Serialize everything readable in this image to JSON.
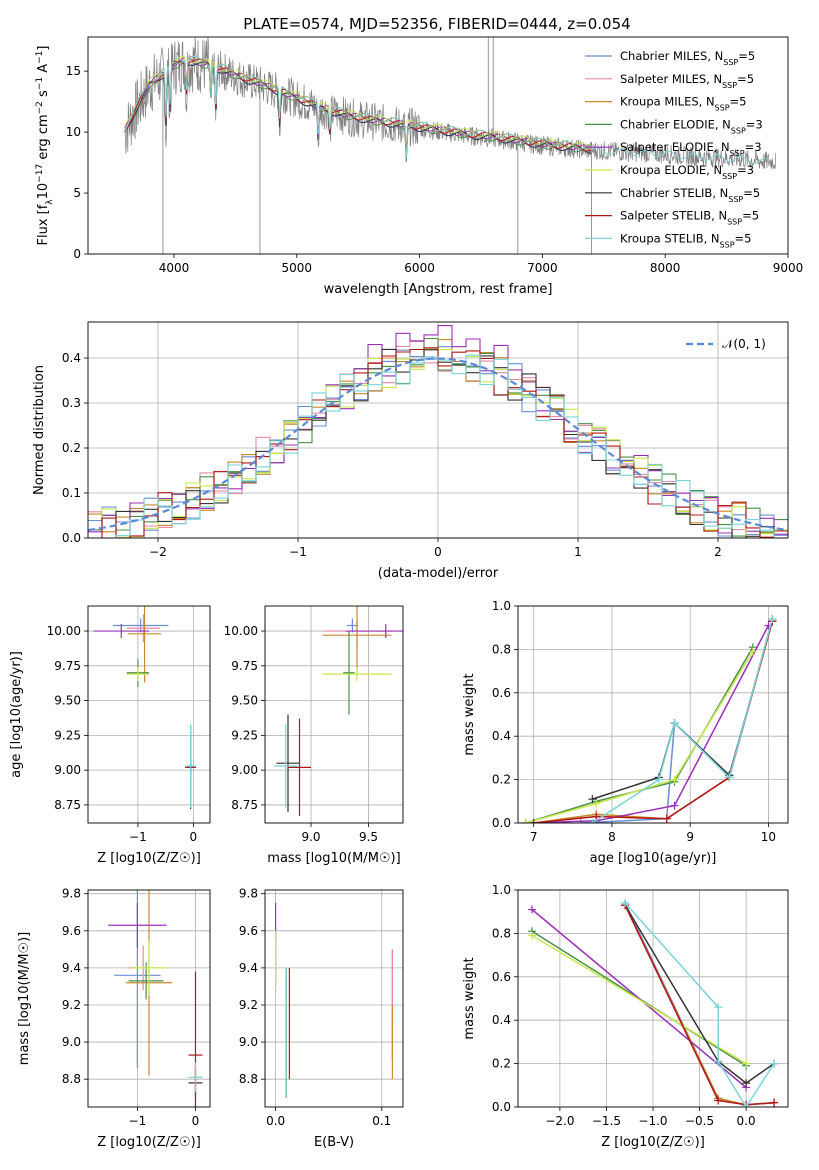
{
  "title": "PLATE=0574, MJD=52356, FIBERID=0444, z=0.054",
  "colors": {
    "Chabrier MILES": "#6a8fd4",
    "Salpeter MILES": "#e88aa8",
    "Kroupa MILES": "#c88a2a",
    "Chabrier ELODIE": "#4a8f4a",
    "Salpeter ELODIE": "#9b30b8",
    "Kroupa ELODIE": "#c8e84a",
    "Chabrier STELIB": "#333333",
    "Salpeter STELIB": "#b01818",
    "Kroupa STELIB": "#7ad4d8",
    "data": "#808080",
    "gauss": "#5b8bd8",
    "grid": "#b0b0b0"
  },
  "chart_data": [
    {
      "type": "line",
      "xlabel": "wavelength [Angstrom, rest frame]",
      "ylabel": "Flux [f_λ 10^-17 erg cm^-2 s^-1 A^-1]",
      "xlim": [
        3300,
        9000
      ],
      "ylim": [
        0,
        17.8
      ],
      "xticks": [
        "4000",
        "5000",
        "6000",
        "7000",
        "8000",
        "9000"
      ],
      "yticks": [
        "0",
        "5",
        "10",
        "15"
      ],
      "legend_position": "top-right",
      "legend": [
        "Chabrier MILES, N_SSP=5",
        "Salpeter MILES, N_SSP=5",
        "Kroupa MILES, N_SSP=5",
        "Chabrier ELODIE, N_SSP=3",
        "Salpeter ELODIE, N_SSP=3",
        "Kroupa ELODIE, N_SSP=3",
        "Chabrier STELIB, N_SSP=5",
        "Salpeter STELIB, N_SSP=5",
        "Kroupa STELIB, N_SSP=5"
      ],
      "continuum": {
        "x": [
          3600,
          3700,
          3800,
          3900,
          4000,
          4100,
          4200,
          4300,
          4400,
          4500,
          4600,
          4700,
          4800,
          5000,
          5200,
          5400,
          5600,
          5800,
          6000,
          6200,
          6400,
          6600,
          6800,
          7000,
          7200,
          7400,
          7600,
          7800,
          8000,
          8200,
          8400,
          8600,
          8800
        ],
        "y": [
          10.0,
          12.0,
          13.8,
          14.6,
          15.4,
          15.8,
          15.6,
          15.4,
          15.0,
          14.6,
          14.2,
          13.9,
          13.5,
          12.7,
          11.9,
          11.3,
          10.9,
          10.6,
          10.3,
          10.0,
          9.7,
          9.5,
          9.2,
          8.9,
          8.7,
          8.5,
          8.4,
          8.3,
          8.2,
          8.0,
          7.9,
          7.8,
          7.6
        ]
      },
      "absorption_lines": [
        {
          "x": 3934,
          "depth": 5
        },
        {
          "x": 3968,
          "depth": 4
        },
        {
          "x": 4102,
          "depth": 3
        },
        {
          "x": 4300,
          "depth": 3
        },
        {
          "x": 4341,
          "depth": 4
        },
        {
          "x": 4861,
          "depth": 3
        },
        {
          "x": 5175,
          "depth": 3
        },
        {
          "x": 5270,
          "depth": 2
        },
        {
          "x": 5892,
          "depth": 3
        }
      ],
      "spikes": [
        {
          "x": 3910,
          "y": 0
        },
        {
          "x": 4700,
          "y": 0
        },
        {
          "x": 6800,
          "y": 0
        },
        {
          "x": 6560,
          "y": 17.8
        },
        {
          "x": 6600,
          "y": 17.8
        },
        {
          "x": 7400,
          "y": 0
        }
      ]
    },
    {
      "type": "bar",
      "xlabel": "(data-model)/error",
      "ylabel": "Normed distribution",
      "xlim": [
        -2.5,
        2.5
      ],
      "ylim": [
        0,
        0.48
      ],
      "xticks": [
        "−2",
        "−1",
        "0",
        "1",
        "2"
      ],
      "yticks": [
        "0.0",
        "0.1",
        "0.2",
        "0.3",
        "0.4"
      ],
      "legend": [
        "𝒩(0, 1)"
      ],
      "gaussian": {
        "mean": 0,
        "sigma": 1
      },
      "bin_width": 0.1
    },
    {
      "type": "scatter",
      "xlabel": "Z [log10(Z/Z☉)]",
      "ylabel": "age [log10(age/yr)]",
      "xlim": [
        -1.9,
        0.3
      ],
      "ylim": [
        8.62,
        10.18
      ],
      "xticks": [
        "−1",
        "0"
      ],
      "yticks": [
        "8.75",
        "9.00",
        "9.25",
        "9.50",
        "9.75",
        "10.00"
      ],
      "points": [
        {
          "model": "Chabrier MILES",
          "x": -0.95,
          "y": 10.04,
          "xerr": 0.5,
          "yerr": 0.05
        },
        {
          "model": "Salpeter MILES",
          "x": -0.9,
          "y": 10.02,
          "xerr": 0.3,
          "yerr": 0.1
        },
        {
          "model": "Kroupa MILES",
          "x": -0.88,
          "y": 9.98,
          "xerr": 0.3,
          "yerr": 0.35
        },
        {
          "model": "Chabrier ELODIE",
          "x": -1.0,
          "y": 9.7,
          "xerr": 0.2,
          "yerr": 0.1
        },
        {
          "model": "Salpeter ELODIE",
          "x": -1.3,
          "y": 10.0,
          "xerr": 0.5,
          "yerr": 0.05
        },
        {
          "model": "Kroupa ELODIE",
          "x": -1.0,
          "y": 9.69,
          "xerr": 0.2,
          "yerr": 0.05
        },
        {
          "model": "Chabrier STELIB",
          "x": -0.05,
          "y": 9.02,
          "xerr": 0.05,
          "yerr": 0.3
        },
        {
          "model": "Salpeter STELIB",
          "x": -0.05,
          "y": 9.02,
          "xerr": 0.1,
          "yerr": 0.05
        },
        {
          "model": "Kroupa STELIB",
          "x": -0.05,
          "y": 9.03,
          "xerr": 0.1,
          "yerr": 0.3
        }
      ]
    },
    {
      "type": "scatter",
      "xlabel": "mass [log10(M/M☉)]",
      "ylabel": "",
      "xlim": [
        8.6,
        9.8
      ],
      "ylim": [
        8.62,
        10.18
      ],
      "xticks": [
        "9.0",
        "9.5"
      ],
      "yticks": [
        "8.75",
        "9.00",
        "9.25",
        "9.50",
        "9.75",
        "10.00"
      ],
      "points": [
        {
          "model": "Chabrier MILES",
          "x": 9.36,
          "y": 10.04,
          "xerr": 0.05,
          "yerr": 0.05
        },
        {
          "model": "Salpeter MILES",
          "x": 9.4,
          "y": 10.0,
          "xerr": 0.3,
          "yerr": 0.1
        },
        {
          "model": "Kroupa MILES",
          "x": 9.4,
          "y": 9.97,
          "xerr": 0.3,
          "yerr": 0.3
        },
        {
          "model": "Chabrier ELODIE",
          "x": 9.33,
          "y": 9.7,
          "xerr": 0.05,
          "yerr": 0.3
        },
        {
          "model": "Salpeter ELODIE",
          "x": 9.65,
          "y": 10.0,
          "xerr": 0.35,
          "yerr": 0.05
        },
        {
          "model": "Kroupa ELODIE",
          "x": 9.4,
          "y": 9.69,
          "xerr": 0.3,
          "yerr": 0.05
        },
        {
          "model": "Chabrier STELIB",
          "x": 8.8,
          "y": 9.05,
          "xerr": 0.1,
          "yerr": 0.35
        },
        {
          "model": "Salpeter STELIB",
          "x": 8.9,
          "y": 9.02,
          "xerr": 0.1,
          "yerr": 0.35
        },
        {
          "model": "Kroupa STELIB",
          "x": 8.78,
          "y": 9.03,
          "xerr": 0.1,
          "yerr": 0.3
        }
      ]
    },
    {
      "type": "line",
      "xlabel": "age [log10(age/yr)]",
      "ylabel": "mass weight",
      "xlim": [
        6.8,
        10.25
      ],
      "ylim": [
        0,
        1.0
      ],
      "xticks": [
        "7",
        "8",
        "9",
        "10"
      ],
      "yticks": [
        "0.0",
        "0.2",
        "0.4",
        "0.6",
        "0.8",
        "1.0"
      ],
      "series": [
        {
          "name": "Chabrier MILES",
          "x": [
            7.6,
            8.7,
            8.8,
            9.5,
            10.05
          ],
          "y": [
            0.0,
            0.02,
            0.46,
            0.22,
            0.93
          ]
        },
        {
          "name": "Salpeter MILES",
          "x": [
            7.0,
            7.8,
            8.7,
            9.5,
            10.05
          ],
          "y": [
            0.0,
            0.03,
            0.02,
            0.21,
            0.93
          ]
        },
        {
          "name": "Kroupa MILES",
          "x": [
            7.0,
            7.8,
            8.7,
            9.5,
            10.05
          ],
          "y": [
            0.0,
            0.04,
            0.02,
            0.21,
            0.94
          ]
        },
        {
          "name": "Chabrier ELODIE",
          "x": [
            6.9,
            7.8,
            8.8,
            9.8
          ],
          "y": [
            0.0,
            0.1,
            0.19,
            0.81
          ]
        },
        {
          "name": "Salpeter ELODIE",
          "x": [
            6.9,
            7.8,
            8.8,
            10.0
          ],
          "y": [
            0.0,
            0.01,
            0.08,
            0.91
          ]
        },
        {
          "name": "Kroupa ELODIE",
          "x": [
            6.9,
            7.8,
            8.8,
            9.8
          ],
          "y": [
            0.0,
            0.09,
            0.2,
            0.79
          ]
        },
        {
          "name": "Chabrier STELIB",
          "x": [
            7.75,
            8.6,
            8.8,
            9.5,
            10.05
          ],
          "y": [
            0.11,
            0.21,
            0.46,
            0.22,
            0.93
          ]
        },
        {
          "name": "Salpeter STELIB",
          "x": [
            7.0,
            7.8,
            8.7,
            9.5,
            10.05
          ],
          "y": [
            0.0,
            0.03,
            0.02,
            0.21,
            0.93
          ]
        },
        {
          "name": "Kroupa STELIB",
          "x": [
            7.75,
            8.6,
            8.8,
            9.5,
            10.05
          ],
          "y": [
            0.0,
            0.2,
            0.46,
            0.21,
            0.94
          ]
        }
      ]
    },
    {
      "type": "scatter",
      "xlabel": "Z [log10(Z/Z☉)]",
      "ylabel": "mass [log10(M/M☉)]",
      "xlim": [
        -1.85,
        0.25
      ],
      "ylim": [
        8.65,
        9.82
      ],
      "xticks": [
        "−1",
        "0"
      ],
      "yticks": [
        "8.8",
        "9.0",
        "9.2",
        "9.4",
        "9.6",
        "9.8"
      ],
      "points": [
        {
          "model": "Chabrier MILES",
          "x": -1.0,
          "y": 9.36,
          "xerr": 0.4,
          "yerr": 0.5
        },
        {
          "model": "Salpeter MILES",
          "x": -0.9,
          "y": 9.4,
          "xerr": 0.25,
          "yerr": 0.12
        },
        {
          "model": "Kroupa MILES",
          "x": -0.8,
          "y": 9.32,
          "xerr": 0.4,
          "yerr": 0.5
        },
        {
          "model": "Chabrier ELODIE",
          "x": -0.85,
          "y": 9.33,
          "xerr": 0.3,
          "yerr": 0.1
        },
        {
          "model": "Salpeter ELODIE",
          "x": -1.0,
          "y": 9.63,
          "xerr": 0.5,
          "yerr": 0.12
        },
        {
          "model": "Kroupa ELODIE",
          "x": -0.8,
          "y": 9.4,
          "xerr": 0.3,
          "yerr": 0.15
        },
        {
          "model": "Chabrier STELIB",
          "x": 0.0,
          "y": 8.78,
          "xerr": 0.12,
          "yerr": 0.08
        },
        {
          "model": "Salpeter STELIB",
          "x": 0.0,
          "y": 8.93,
          "xerr": 0.12,
          "yerr": 0.45
        },
        {
          "model": "Kroupa STELIB",
          "x": 0.0,
          "y": 8.81,
          "xerr": 0.12,
          "yerr": 0.08
        }
      ]
    },
    {
      "type": "scatter",
      "xlabel": "E(B-V)",
      "ylabel": "",
      "xlim": [
        -0.01,
        0.12
      ],
      "ylim": [
        8.65,
        9.82
      ],
      "xticks": [
        "0.0",
        "0.1"
      ],
      "yticks": [
        "8.8",
        "9.0",
        "9.2",
        "9.4",
        "9.6",
        "9.8"
      ],
      "points": [
        {
          "model": "Chabrier MILES",
          "x": 0.11,
          "y": 9.2,
          "xerr": 0,
          "yerr": 0.3
        },
        {
          "model": "Salpeter MILES",
          "x": 0.11,
          "y": 9.3,
          "xerr": 0,
          "yerr": 0.2
        },
        {
          "model": "Kroupa MILES",
          "x": 0.11,
          "y": 9.0,
          "xerr": 0,
          "yerr": 0.2
        },
        {
          "model": "Chabrier ELODIE",
          "x": 0.0,
          "y": 9.45,
          "xerr": 0,
          "yerr": 0.15
        },
        {
          "model": "Salpeter ELODIE",
          "x": 0.0,
          "y": 9.65,
          "xerr": 0,
          "yerr": 0.1
        },
        {
          "model": "Kroupa ELODIE",
          "x": 0.0,
          "y": 9.45,
          "xerr": 0,
          "yerr": 0.15
        },
        {
          "model": "Chabrier STELIB",
          "x": 0.01,
          "y": 9.05,
          "xerr": 0,
          "yerr": 0.35
        },
        {
          "model": "Salpeter STELIB",
          "x": 0.013,
          "y": 9.1,
          "xerr": 0,
          "yerr": 0.3
        },
        {
          "model": "Kroupa STELIB",
          "x": 0.01,
          "y": 9.05,
          "xerr": 0,
          "yerr": 0.35
        }
      ]
    },
    {
      "type": "line",
      "xlabel": "Z [log10(Z/Z☉)]",
      "ylabel": "mass weight",
      "xlim": [
        -2.45,
        0.45
      ],
      "ylim": [
        0,
        1.0
      ],
      "xticks": [
        "−2.0",
        "−1.5",
        "−1.0",
        "−0.5",
        "0.0"
      ],
      "yticks": [
        "0.0",
        "0.2",
        "0.4",
        "0.6",
        "0.8",
        "1.0"
      ],
      "series": [
        {
          "name": "Chabrier MILES",
          "x": [
            -1.3,
            -0.3,
            0.0,
            0.3
          ],
          "y": [
            0.94,
            0.04,
            0.01,
            0.02
          ]
        },
        {
          "name": "Salpeter MILES",
          "x": [
            -1.3,
            -0.3,
            0.0,
            0.3
          ],
          "y": [
            0.93,
            0.03,
            0.01,
            0.02
          ]
        },
        {
          "name": "Kroupa MILES",
          "x": [
            -1.3,
            -0.3,
            0.0,
            0.3
          ],
          "y": [
            0.93,
            0.04,
            0.01,
            0.02
          ]
        },
        {
          "name": "Chabrier ELODIE",
          "x": [
            -2.3,
            0.0
          ],
          "y": [
            0.81,
            0.19
          ]
        },
        {
          "name": "Salpeter ELODIE",
          "x": [
            -2.3,
            0.0
          ],
          "y": [
            0.91,
            0.09
          ]
        },
        {
          "name": "Kroupa ELODIE",
          "x": [
            -2.3,
            0.0
          ],
          "y": [
            0.79,
            0.2
          ]
        },
        {
          "name": "Chabrier STELIB",
          "x": [
            -1.3,
            -0.3,
            0.0,
            0.3
          ],
          "y": [
            0.93,
            0.21,
            0.11,
            0.2
          ]
        },
        {
          "name": "Salpeter STELIB",
          "x": [
            -1.3,
            -0.3,
            0.0,
            0.3
          ],
          "y": [
            0.93,
            0.03,
            0.01,
            0.02
          ]
        },
        {
          "name": "Kroupa STELIB",
          "x": [
            -1.3,
            -0.3,
            -0.3,
            0.0,
            0.3
          ],
          "y": [
            0.94,
            0.46,
            0.21,
            0.0,
            0.2
          ]
        }
      ]
    }
  ]
}
